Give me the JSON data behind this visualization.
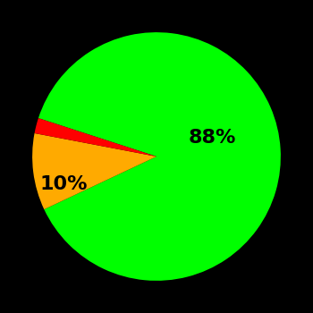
{
  "slices": [
    88,
    10,
    2
  ],
  "colors": [
    "#00ff00",
    "#ffaa00",
    "#ff0000"
  ],
  "labels": [
    "88%",
    "10%",
    ""
  ],
  "background_color": "#000000",
  "label_fontsize": 16,
  "label_color": "#000000",
  "startangle": 162,
  "figsize": [
    3.5,
    3.5
  ],
  "dpi": 100
}
